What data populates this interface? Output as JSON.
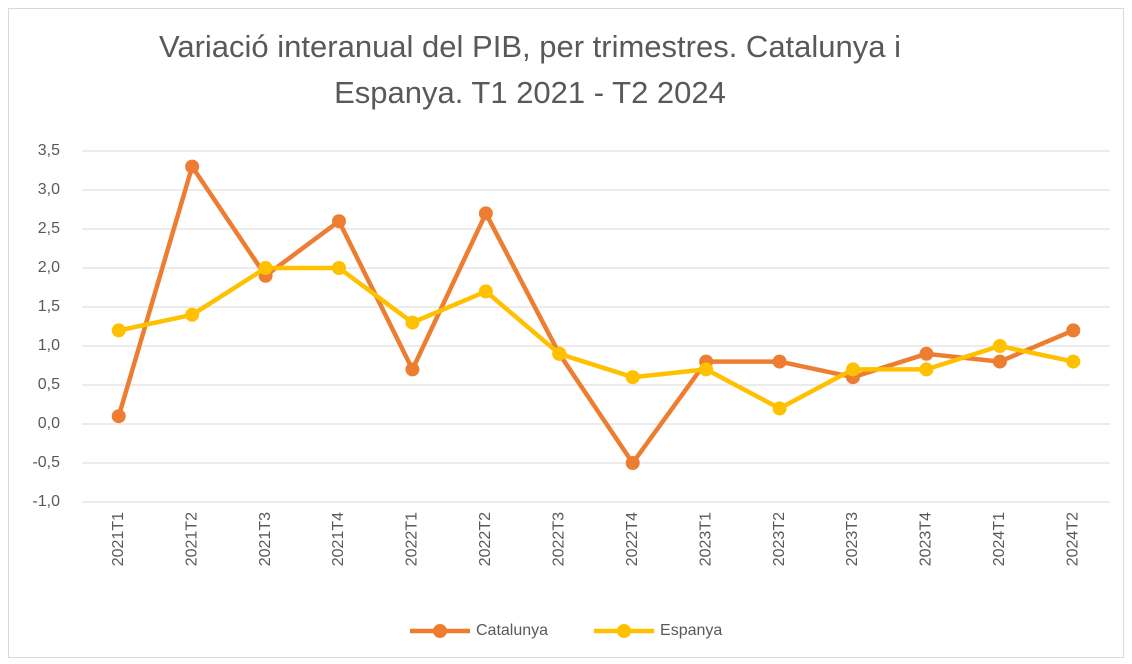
{
  "chart_data": {
    "type": "line",
    "title": "Variació interanual del PIB, per trimestres. Catalunya i Espanya. T1 2021 - T2 2024",
    "categories": [
      "2021T1",
      "2021T2",
      "2021T3",
      "2021T4",
      "2022T1",
      "2022T2",
      "2022T3",
      "2022T4",
      "2023T1",
      "2023T2",
      "2023T3",
      "2023T4",
      "2024T1",
      "2024T2"
    ],
    "series": [
      {
        "name": "Catalunya",
        "color": "#ed7d31",
        "values": [
          0.1,
          3.3,
          1.9,
          2.6,
          0.7,
          2.7,
          0.9,
          -0.5,
          0.8,
          0.8,
          0.6,
          0.9,
          0.8,
          1.2
        ]
      },
      {
        "name": "Espanya",
        "color": "#ffc000",
        "values": [
          1.2,
          1.4,
          2.0,
          2.0,
          1.3,
          1.7,
          0.9,
          0.6,
          0.7,
          0.2,
          0.7,
          0.7,
          1.0,
          0.8
        ]
      }
    ],
    "ylim": [
      -1.0,
      3.5
    ],
    "yticks": [
      {
        "value": -1.0,
        "label": "-1,0"
      },
      {
        "value": -0.5,
        "label": "-0,5"
      },
      {
        "value": 0.0,
        "label": "0,0"
      },
      {
        "value": 0.5,
        "label": "0,5"
      },
      {
        "value": 1.0,
        "label": "1,0"
      },
      {
        "value": 1.5,
        "label": "1,5"
      },
      {
        "value": 2.0,
        "label": "2,0"
      },
      {
        "value": 2.5,
        "label": "2,5"
      },
      {
        "value": 3.0,
        "label": "3,0"
      },
      {
        "value": 3.5,
        "label": "3,5"
      }
    ],
    "grid": true,
    "legend": "bottom"
  }
}
